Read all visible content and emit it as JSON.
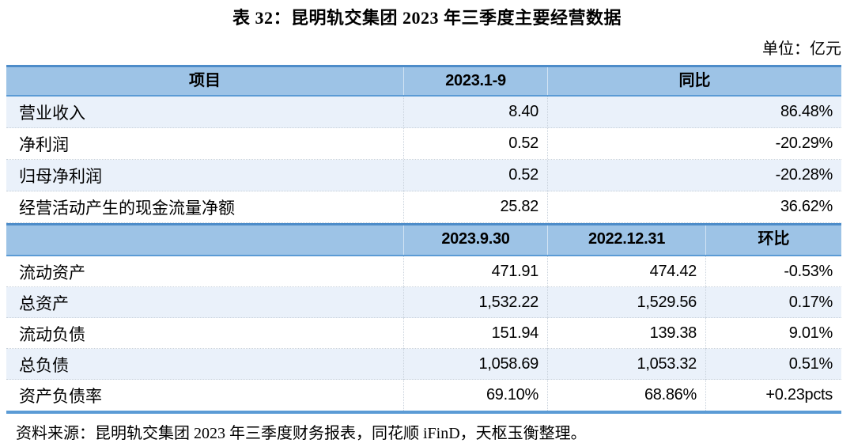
{
  "title": "表 32：昆明轨交集团 2023 年三季度主要经营数据",
  "unit_label": "单位：亿元",
  "colors": {
    "header_fill": "#9DC3E6",
    "heavy_border": "#5B9BD5",
    "alt_row_fill": "#EAF1FA",
    "grid_line": "#c9d2dc"
  },
  "table": {
    "section1": {
      "col_label": "项目",
      "col_value": "2023.1-9",
      "col_yoy": "同比",
      "rows": [
        {
          "label": "营业收入",
          "value": "8.40",
          "yoy": "86.48%"
        },
        {
          "label": "净利润",
          "value": "0.52",
          "yoy": "-20.29%"
        },
        {
          "label": "归母净利润",
          "value": "0.52",
          "yoy": "-20.28%"
        },
        {
          "label": "经营活动产生的现金流量净额",
          "value": "25.82",
          "yoy": "36.62%"
        }
      ]
    },
    "section2": {
      "col_label": "",
      "col_v1": "2023.9.30",
      "col_v2": "2022.12.31",
      "col_qoq": "环比",
      "rows": [
        {
          "label": "流动资产",
          "v1": "471.91",
          "v2": "474.42",
          "qoq": "-0.53%"
        },
        {
          "label": "总资产",
          "v1": "1,532.22",
          "v2": "1,529.56",
          "qoq": "0.17%"
        },
        {
          "label": "流动负债",
          "v1": "151.94",
          "v2": "139.38",
          "qoq": "9.01%"
        },
        {
          "label": "总负债",
          "v1": "1,058.69",
          "v2": "1,053.32",
          "qoq": "0.51%"
        },
        {
          "label": "资产负债率",
          "v1": "69.10%",
          "v2": "68.86%",
          "qoq": "+0.23pcts"
        }
      ]
    }
  },
  "source": "资料来源：昆明轨交集团 2023 年三季度财务报表，同花顺 iFinD，天枢玉衡整理。"
}
